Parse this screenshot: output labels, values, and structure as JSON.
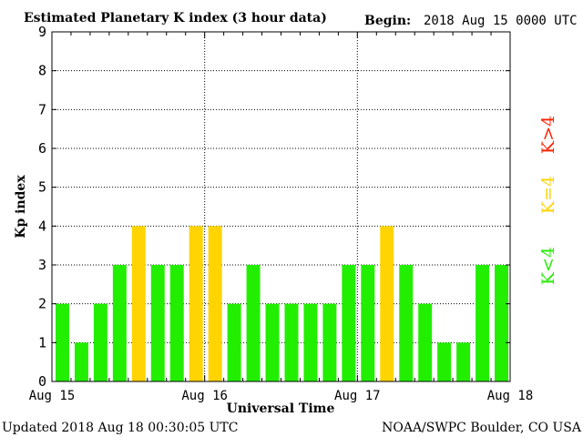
{
  "header": {
    "title": "Estimated Planetary K index (3 hour data)",
    "begin_label": "Begin:",
    "begin_value": "2018 Aug 15 0000 UTC"
  },
  "footer": {
    "updated": "Updated 2018 Aug 18 00:30:05 UTC",
    "source": "NOAA/SWPC Boulder, CO USA"
  },
  "legend": {
    "low": "K<4",
    "equal": "K=4",
    "high": "K>4"
  },
  "colors": {
    "low": "#22ee00",
    "equal": "#ffd400",
    "high": "#ff2200",
    "axis": "#000000"
  },
  "chart_data": {
    "type": "bar",
    "title": "Estimated Planetary K index (3 hour data)",
    "xlabel": "Universal Time",
    "ylabel": "Kp index",
    "ylim": [
      0,
      9
    ],
    "y_ticks": [
      "0",
      "1",
      "2",
      "3",
      "4",
      "5",
      "6",
      "7",
      "8",
      "9"
    ],
    "x_tick_labels": [
      "Aug 15",
      "Aug 16",
      "Aug 17",
      "Aug 18"
    ],
    "interval_hours": 3,
    "values": [
      2,
      1,
      2,
      3,
      4,
      3,
      3,
      4,
      4,
      2,
      3,
      2,
      2,
      2,
      2,
      3,
      3,
      4,
      3,
      2,
      1,
      1,
      3,
      3
    ],
    "grid": true,
    "legend_position": "right"
  }
}
